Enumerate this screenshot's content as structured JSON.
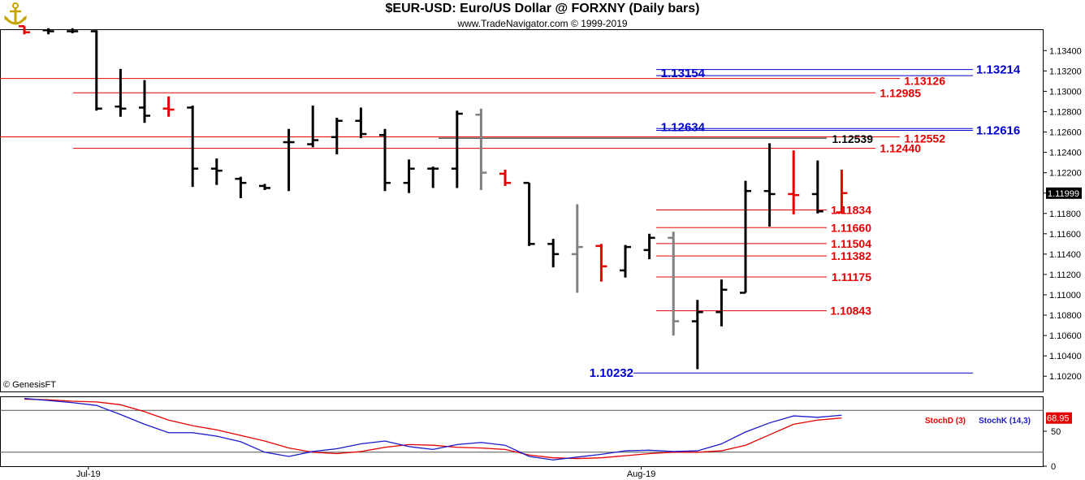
{
  "header": {
    "title": "$EUR-USD:  Euro/US Dollar @ FORXNY  (Daily bars)",
    "subtitle": "www.TradeNavigator.com © 1999-2019"
  },
  "copyright": "© GenesisFT",
  "colors": {
    "up_bar": "#000000",
    "down_bar": "#e60000",
    "inside_bar": "#808080",
    "red_line": "#e60000",
    "blue_line": "#0000cc",
    "stochD": "#e60000",
    "stochK": "#1a1acc"
  },
  "chart_data": [
    {
      "type": "ohlc",
      "title": "$EUR-USD:  Euro/US Dollar @ FORXNY  (Daily bars)",
      "ylim": [
        1.1005,
        1.1361
      ],
      "y_ticks": [
        "1.13400",
        "1.13200",
        "1.13000",
        "1.12800",
        "1.12600",
        "1.12400",
        "1.12200",
        "1.12000",
        "1.11800",
        "1.11600",
        "1.11400",
        "1.11200",
        "1.11000",
        "1.10800",
        "1.10600",
        "1.10400",
        "1.10200"
      ],
      "y_tick_values": [
        1.134,
        1.132,
        1.13,
        1.128,
        1.126,
        1.124,
        1.122,
        1.12,
        1.118,
        1.116,
        1.114,
        1.112,
        1.11,
        1.108,
        1.106,
        1.104,
        1.102
      ],
      "last_price_label": "1.11999",
      "last_price": 1.11999,
      "x_labels": [
        {
          "label": "Jul-19",
          "index": 3
        },
        {
          "label": "Aug-19",
          "index": 26
        }
      ],
      "bars": [
        {
          "open": 1.1364,
          "high": 1.1364,
          "low": 1.1356,
          "close": 1.1358,
          "color": "down"
        },
        {
          "open": 1.136,
          "high": 1.1362,
          "low": 1.1356,
          "close": 1.1359,
          "color": "up"
        },
        {
          "open": 1.1359,
          "high": 1.1362,
          "low": 1.1357,
          "close": 1.1359,
          "color": "up"
        },
        {
          "open": 1.1359,
          "high": 1.136,
          "low": 1.1281,
          "close": 1.1283,
          "color": "up"
        },
        {
          "open": 1.1285,
          "high": 1.1322,
          "low": 1.1275,
          "close": 1.1283,
          "color": "up"
        },
        {
          "open": 1.1284,
          "high": 1.1311,
          "low": 1.1269,
          "close": 1.1276,
          "color": "up"
        },
        {
          "open": 1.1283,
          "high": 1.1295,
          "low": 1.1275,
          "close": 1.1282,
          "color": "down"
        },
        {
          "open": 1.1284,
          "high": 1.1286,
          "low": 1.1206,
          "close": 1.1224,
          "color": "up"
        },
        {
          "open": 1.1224,
          "high": 1.1234,
          "low": 1.1208,
          "close": 1.1222,
          "color": "up"
        },
        {
          "open": 1.1214,
          "high": 1.1216,
          "low": 1.1195,
          "close": 1.121,
          "color": "up"
        },
        {
          "open": 1.1207,
          "high": 1.1209,
          "low": 1.1203,
          "close": 1.1205,
          "color": "up"
        },
        {
          "open": 1.125,
          "high": 1.1263,
          "low": 1.1202,
          "close": 1.125,
          "color": "up"
        },
        {
          "open": 1.1248,
          "high": 1.1286,
          "low": 1.1245,
          "close": 1.1252,
          "color": "up"
        },
        {
          "open": 1.1255,
          "high": 1.1274,
          "low": 1.1238,
          "close": 1.1271,
          "color": "up"
        },
        {
          "open": 1.1271,
          "high": 1.1284,
          "low": 1.1254,
          "close": 1.1258,
          "color": "up"
        },
        {
          "open": 1.1257,
          "high": 1.1263,
          "low": 1.1202,
          "close": 1.121,
          "color": "up"
        },
        {
          "open": 1.121,
          "high": 1.1233,
          "low": 1.12,
          "close": 1.1224,
          "color": "up"
        },
        {
          "open": 1.1224,
          "high": 1.1226,
          "low": 1.1205,
          "close": 1.1224,
          "color": "up"
        },
        {
          "open": 1.1224,
          "high": 1.1281,
          "low": 1.1205,
          "close": 1.1278,
          "color": "up"
        },
        {
          "open": 1.1277,
          "high": 1.1283,
          "low": 1.1203,
          "close": 1.122,
          "color": "inside"
        },
        {
          "open": 1.1219,
          "high": 1.1223,
          "low": 1.1207,
          "close": 1.121,
          "color": "down"
        },
        {
          "open": 1.121,
          "high": 1.121,
          "low": 1.1148,
          "close": 1.115,
          "color": "up"
        },
        {
          "open": 1.115,
          "high": 1.1155,
          "low": 1.1127,
          "close": 1.114,
          "color": "up"
        },
        {
          "open": 1.114,
          "high": 1.1189,
          "low": 1.1102,
          "close": 1.1147,
          "color": "inside"
        },
        {
          "open": 1.1148,
          "high": 1.115,
          "low": 1.1113,
          "close": 1.1128,
          "color": "down"
        },
        {
          "open": 1.1124,
          "high": 1.1149,
          "low": 1.1117,
          "close": 1.1147,
          "color": "up"
        },
        {
          "open": 1.1144,
          "high": 1.116,
          "low": 1.1135,
          "close": 1.1156,
          "color": "up"
        },
        {
          "open": 1.1156,
          "high": 1.1162,
          "low": 1.106,
          "close": 1.1074,
          "color": "inside"
        },
        {
          "open": 1.1074,
          "high": 1.1095,
          "low": 1.1027,
          "close": 1.1083,
          "color": "up"
        },
        {
          "open": 1.1083,
          "high": 1.1115,
          "low": 1.1069,
          "close": 1.1105,
          "color": "up"
        },
        {
          "open": 1.1102,
          "high": 1.1212,
          "low": 1.1102,
          "close": 1.1202,
          "color": "up"
        },
        {
          "open": 1.1202,
          "high": 1.1249,
          "low": 1.1167,
          "close": 1.1199,
          "color": "up"
        },
        {
          "open": 1.1199,
          "high": 1.1242,
          "low": 1.1179,
          "close": 1.1198,
          "color": "down"
        },
        {
          "open": 1.1199,
          "high": 1.1232,
          "low": 1.118,
          "close": 1.1182,
          "color": "up"
        },
        {
          "open": 1.1181,
          "high": 1.1223,
          "low": 1.118,
          "close": 1.12,
          "color": "down"
        }
      ],
      "levels": [
        {
          "label": "1.13214",
          "value": 1.13214,
          "color": "blue",
          "from_index": 27
        },
        {
          "label": "1.13154",
          "value": 1.13154,
          "color": "blue",
          "from_index": 27
        },
        {
          "label": "1.13126",
          "value": 1.13126,
          "color": "red",
          "from_index": -1
        },
        {
          "label": "1.12985",
          "value": 1.12985,
          "color": "red",
          "from_index": 2
        },
        {
          "label": "1.12634",
          "value": 1.12634,
          "color": "blue",
          "from_index": 27
        },
        {
          "label": "1.12616",
          "value": 1.12616,
          "color": "blue",
          "from_index": 27
        },
        {
          "label": "1.12552",
          "value": 1.12552,
          "color": "red",
          "from_index": -1
        },
        {
          "label": "1.12539",
          "value": 1.12539,
          "color": "black",
          "from_index": 18
        },
        {
          "label": "1.12440",
          "value": 1.1244,
          "color": "red",
          "from_index": 2
        },
        {
          "label": "1.11834",
          "value": 1.11834,
          "color": "red",
          "from_index": 27
        },
        {
          "label": "1.11660",
          "value": 1.1166,
          "color": "red",
          "from_index": 27
        },
        {
          "label": "1.11504",
          "value": 1.11504,
          "color": "red",
          "from_index": 27
        },
        {
          "label": "1.11382",
          "value": 1.11382,
          "color": "red",
          "from_index": 27
        },
        {
          "label": "1.11175",
          "value": 1.11175,
          "color": "red",
          "from_index": 27
        },
        {
          "label": "1.10843",
          "value": 1.10843,
          "color": "red",
          "from_index": 27
        },
        {
          "label": "1.10232",
          "value": 1.10232,
          "color": "blue",
          "from_index": 27
        }
      ]
    },
    {
      "type": "line",
      "ylim": [
        0,
        100
      ],
      "y_ticks": [
        "50",
        "0"
      ],
      "y_tick_values": [
        50,
        0
      ],
      "last_value_label": "68.95",
      "last_value": 68.95,
      "reference_lines": [
        80,
        20
      ],
      "series": [
        {
          "name": "StochD (3)",
          "color": "#e60000",
          "values": [
            96,
            95,
            93,
            92,
            88,
            78,
            66,
            58,
            52,
            44,
            36,
            26,
            20,
            18,
            21,
            27,
            31,
            30,
            27,
            26,
            24,
            16,
            12,
            11,
            12,
            15,
            18,
            20,
            20,
            22,
            30,
            45,
            60,
            66,
            69
          ]
        },
        {
          "name": "StochK (14,3)",
          "color": "#1a1acc",
          "values": [
            97,
            94,
            91,
            87,
            74,
            60,
            48,
            48,
            43,
            35,
            20,
            14,
            21,
            25,
            32,
            36,
            28,
            24,
            31,
            34,
            30,
            14,
            9,
            13,
            17,
            22,
            23,
            21,
            22,
            32,
            49,
            62,
            72,
            70,
            73
          ]
        }
      ]
    }
  ]
}
